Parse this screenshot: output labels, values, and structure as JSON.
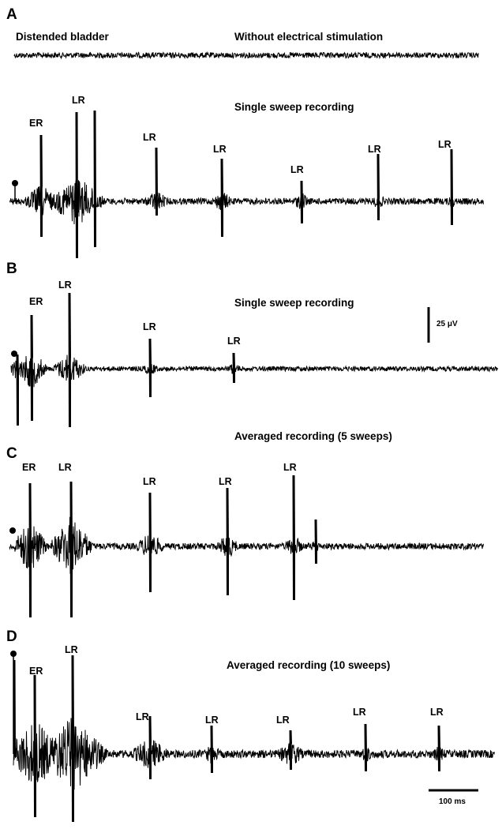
{
  "panels": {
    "A": {
      "letter": "A",
      "left_caption": "Distended bladder",
      "top_caption": "Without electrical stimulation",
      "caption": "Single sweep recording",
      "labels": [
        "ER",
        "LR",
        "LR",
        "LR",
        "LR",
        "LR",
        "LR"
      ]
    },
    "B": {
      "letter": "B",
      "caption": "Single sweep recording",
      "labels": [
        "ER",
        "LR",
        "LR",
        "LR"
      ]
    },
    "C": {
      "letter": "C",
      "caption": "Averaged recording (5 sweeps)",
      "labels": [
        "ER",
        "LR",
        "LR",
        "LR",
        "LR"
      ]
    },
    "D": {
      "letter": "D",
      "caption": "Averaged recording (10 sweeps)",
      "labels": [
        "ER",
        "LR",
        "LR",
        "LR",
        "LR",
        "LR",
        "LR"
      ]
    }
  },
  "scale_bars": {
    "amplitude": "25 μV",
    "time": "100 ms"
  },
  "colors": {
    "trace": "#000000",
    "background": "#ffffff"
  }
}
